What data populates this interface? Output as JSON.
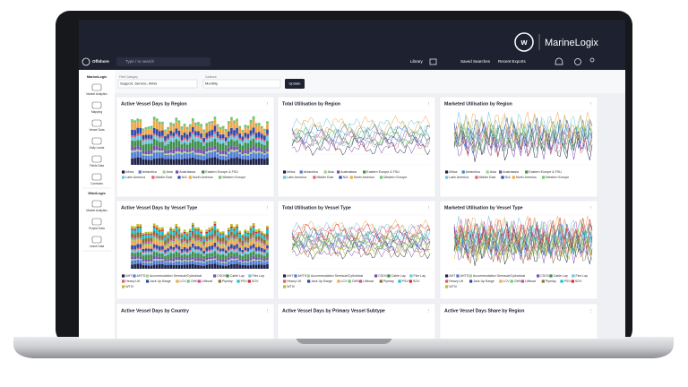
{
  "header": {
    "logo": "MarineLogix",
    "product": "Offshore",
    "search": "Type / to search",
    "nav": [
      "Library",
      "Saved Searches",
      "Recent Exports"
    ]
  },
  "filters": {
    "fleet_label": "Fleet Category",
    "fleet_value": "Support, Service, Wind",
    "cadence_label": "Cadence",
    "cadence_value": "Monthly",
    "button": "Update"
  },
  "sidebar": {
    "sections": [
      {
        "title": "MarineLogix",
        "items": [
          "Market Analytics",
          "Mapping",
          "Vessel Data",
          "Daily Leads",
          "Fields Data",
          "Contracts"
        ]
      },
      {
        "title": "WindLogix",
        "items": [
          "Market Analytics",
          "Project Data",
          "Lease Data"
        ]
      }
    ]
  },
  "legends": {
    "regions": {
      "names": [
        "Africa",
        "Antarctica",
        "Asia",
        "Australasia",
        "Eastern Europe & FSU",
        "Latin America",
        "Middle East",
        "N/A",
        "North America",
        "Western Europe"
      ],
      "colors": [
        "#1d2147",
        "#4f7bd9",
        "#9ed08a",
        "#7b4bb5",
        "#3f8f4a",
        "#6bc4e0",
        "#e05a6b",
        "#2e4aa8",
        "#f0a64b",
        "#74c476"
      ]
    },
    "vessel_types": {
      "names": [
        "AHT",
        "AHTS",
        "Accommodation Semisub/Cylindrical",
        "CSOV",
        "Cable Lay",
        "Flex Lay",
        "Heavy Lift",
        "Jack Up Barge",
        "LCV",
        "OWV",
        "Liftboat",
        "Pipelay",
        "PSV",
        "SOV",
        "WTIV"
      ],
      "colors": [
        "#1d2147",
        "#4f7bd9",
        "#9ed08a",
        "#7b4bb5",
        "#3f8f4a",
        "#6bc4e0",
        "#e05a6b",
        "#2e4aa8",
        "#f0a64b",
        "#74c476",
        "#c94fa0",
        "#8c6d31",
        "#17becf",
        "#d62728",
        "#bcbd22"
      ]
    }
  },
  "panels": [
    "Active Vessel Days by Region",
    "Total Utilisation by Region",
    "Marketed Utilisation by Region",
    "Active Vessel Days by Vessel Type",
    "Total Utilisation by Vessel Type",
    "Marketed Utilisation by Vessel Type",
    "Active Vessel Days by Country",
    "Active Vessel Days by Primary Vessel Subtype",
    "Active Vessel Days Share by Region"
  ]
}
